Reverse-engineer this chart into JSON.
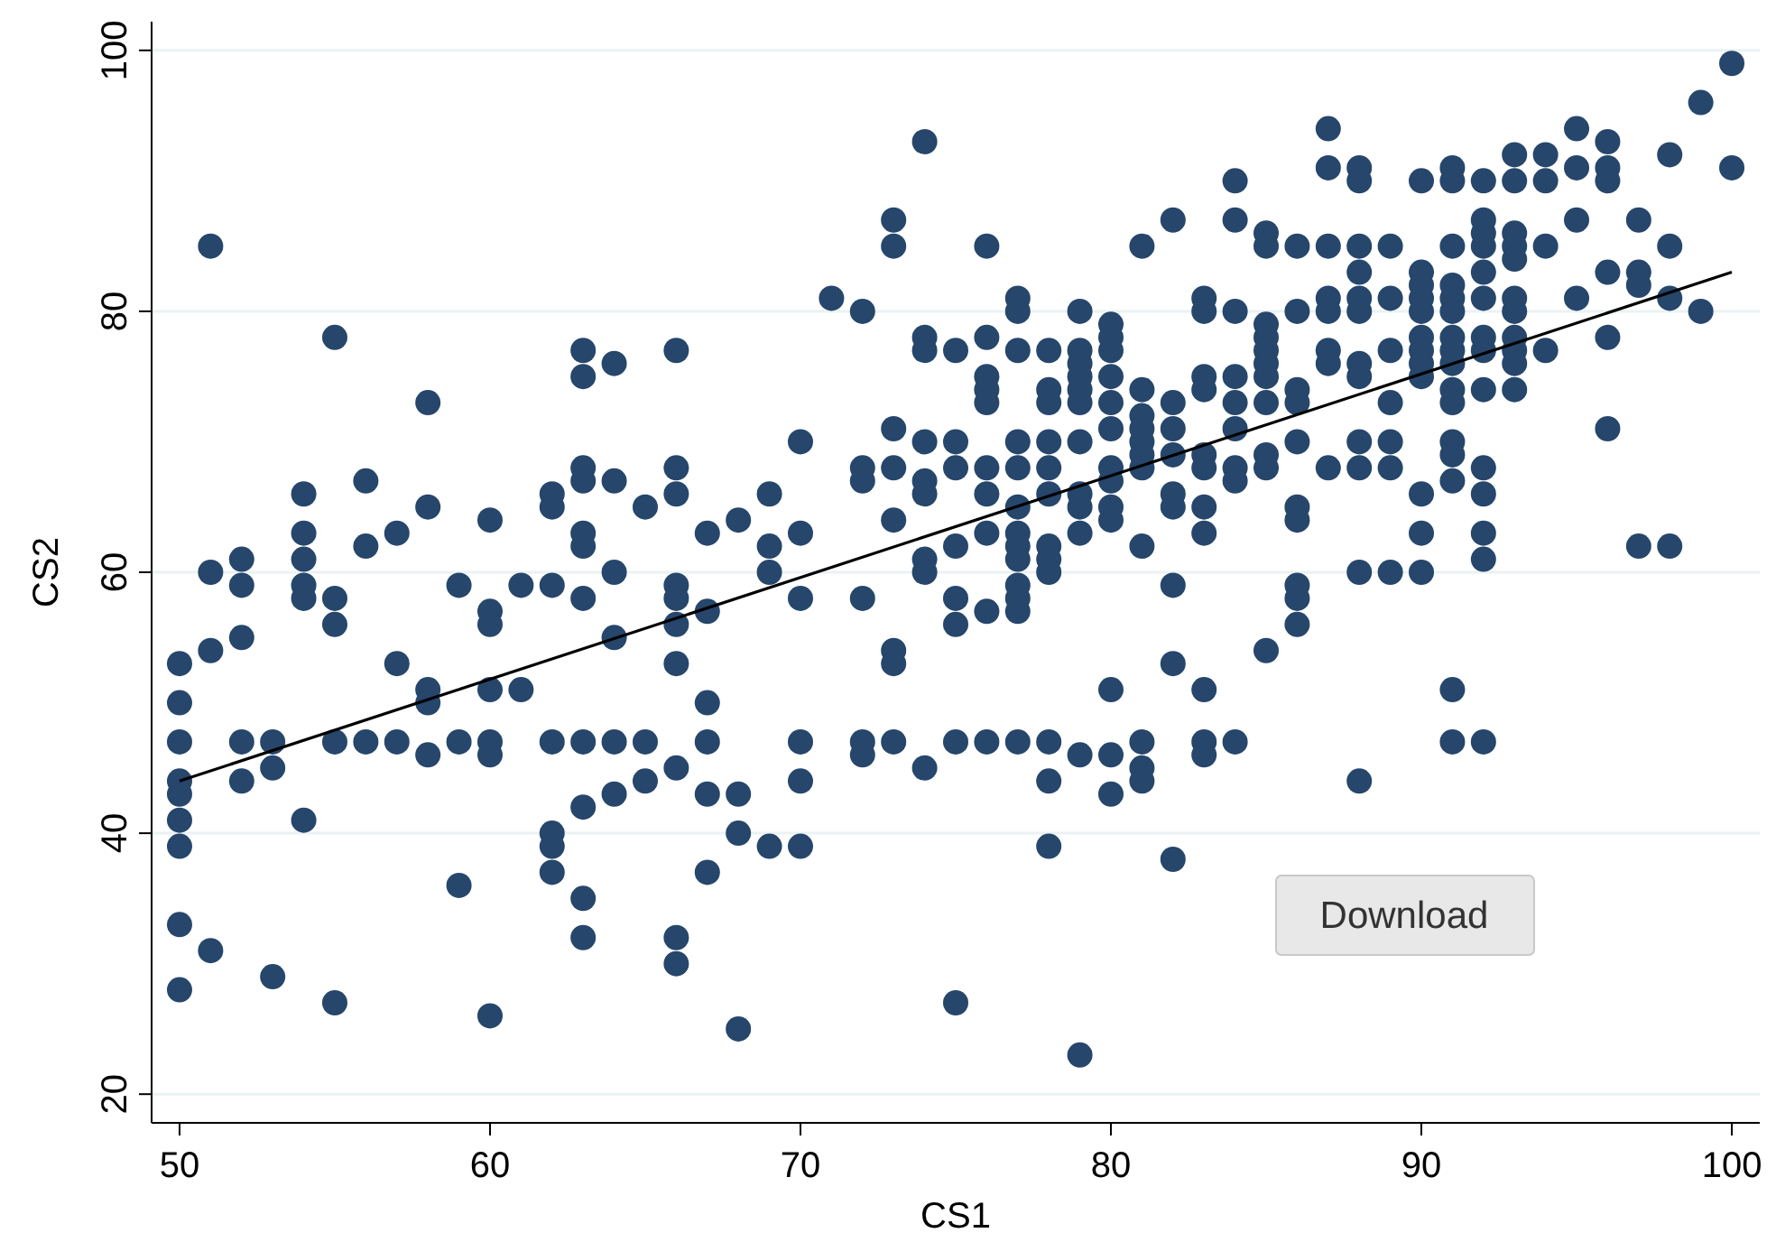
{
  "chart_data": {
    "type": "scatter",
    "xlabel": "CS1",
    "ylabel": "CS2",
    "xlim": [
      49.1,
      100.9
    ],
    "ylim": [
      17.8,
      102.2
    ],
    "xticks": [
      50,
      60,
      70,
      80,
      90,
      100
    ],
    "yticks": [
      20,
      40,
      60,
      80,
      100
    ],
    "grid": "y",
    "marker": "circle",
    "annotations": [
      "Download"
    ],
    "series": [
      {
        "color": "#26466b",
        "x": [
          50,
          50,
          50,
          50,
          50,
          50,
          50,
          50,
          50,
          51,
          51,
          51,
          51,
          52,
          52,
          52,
          52,
          52,
          53,
          53,
          53,
          54,
          54,
          54,
          54,
          54,
          54,
          55,
          55,
          55,
          55,
          55,
          56,
          56,
          56,
          57,
          57,
          57,
          58,
          58,
          58,
          58,
          58,
          59,
          59,
          59,
          60,
          60,
          60,
          60,
          60,
          60,
          60,
          61,
          61,
          62,
          62,
          62,
          62,
          62,
          62,
          62,
          63,
          63,
          63,
          63,
          63,
          63,
          63,
          63,
          63,
          63,
          63,
          64,
          64,
          64,
          64,
          64,
          64,
          65,
          65,
          65,
          66,
          66,
          66,
          66,
          66,
          66,
          66,
          66,
          66,
          66,
          67,
          67,
          67,
          67,
          67,
          67,
          68,
          68,
          68,
          68,
          69,
          69,
          69,
          69,
          70,
          70,
          70,
          70,
          70,
          70,
          71,
          72,
          72,
          72,
          72,
          72,
          72,
          73,
          73,
          73,
          73,
          73,
          73,
          73,
          73,
          74,
          74,
          74,
          74,
          74,
          74,
          74,
          74,
          74,
          75,
          75,
          75,
          75,
          75,
          75,
          75,
          75,
          76,
          76,
          76,
          76,
          76,
          76,
          76,
          76,
          76,
          76,
          77,
          77,
          77,
          77,
          77,
          77,
          77,
          77,
          77,
          77,
          77,
          77,
          77,
          78,
          78,
          78,
          78,
          78,
          78,
          78,
          78,
          78,
          78,
          78,
          78,
          79,
          79,
          79,
          79,
          79,
          79,
          79,
          79,
          79,
          79,
          79,
          79,
          80,
          80,
          80,
          80,
          80,
          80,
          80,
          80,
          80,
          80,
          80,
          80,
          80,
          81,
          81,
          81,
          81,
          81,
          81,
          81,
          81,
          81,
          81,
          81,
          82,
          82,
          82,
          82,
          82,
          82,
          82,
          82,
          82,
          83,
          83,
          83,
          83,
          83,
          83,
          83,
          83,
          83,
          83,
          83,
          84,
          84,
          84,
          84,
          84,
          84,
          84,
          84,
          84,
          85,
          85,
          85,
          85,
          85,
          85,
          85,
          85,
          85,
          85,
          85,
          86,
          86,
          86,
          86,
          86,
          86,
          86,
          86,
          86,
          86,
          87,
          87,
          87,
          87,
          87,
          87,
          87,
          87,
          88,
          88,
          88,
          88,
          88,
          88,
          88,
          88,
          88,
          88,
          88,
          88,
          89,
          89,
          89,
          89,
          89,
          89,
          89,
          90,
          90,
          90,
          90,
          90,
          90,
          90,
          90,
          90,
          90,
          90,
          90,
          91,
          91,
          91,
          91,
          91,
          91,
          91,
          91,
          91,
          91,
          91,
          91,
          91,
          91,
          91,
          91,
          92,
          92,
          92,
          92,
          92,
          92,
          92,
          92,
          92,
          92,
          92,
          92,
          92,
          92,
          93,
          93,
          93,
          93,
          93,
          93,
          93,
          93,
          93,
          93,
          93,
          94,
          94,
          94,
          94,
          95,
          95,
          95,
          95,
          96,
          96,
          96,
          96,
          96,
          96,
          97,
          97,
          97,
          97,
          98,
          98,
          98,
          98,
          99,
          99,
          100,
          100
        ],
        "values": [
          53,
          50,
          47,
          44,
          43,
          41,
          39,
          33,
          28,
          85,
          60,
          54,
          31,
          61,
          59,
          55,
          47,
          44,
          47,
          45,
          29,
          66,
          63,
          61,
          59,
          58,
          41,
          78,
          58,
          56,
          47,
          27,
          67,
          62,
          47,
          63,
          53,
          47,
          73,
          65,
          51,
          50,
          46,
          59,
          47,
          36,
          64,
          57,
          56,
          51,
          47,
          46,
          26,
          59,
          51,
          66,
          65,
          59,
          47,
          40,
          39,
          37,
          77,
          75,
          68,
          67,
          63,
          62,
          58,
          47,
          42,
          35,
          32,
          76,
          67,
          60,
          55,
          47,
          43,
          65,
          47,
          44,
          77,
          68,
          66,
          59,
          58,
          56,
          53,
          45,
          32,
          30,
          63,
          57,
          50,
          47,
          43,
          37,
          64,
          43,
          40,
          25,
          66,
          62,
          60,
          39,
          70,
          63,
          58,
          47,
          44,
          39,
          81,
          80,
          68,
          67,
          58,
          47,
          46,
          87,
          85,
          71,
          68,
          64,
          54,
          53,
          47,
          93,
          78,
          77,
          70,
          67,
          66,
          61,
          60,
          45,
          77,
          70,
          68,
          62,
          58,
          56,
          47,
          27,
          85,
          78,
          75,
          74,
          73,
          68,
          66,
          63,
          57,
          47,
          81,
          80,
          77,
          70,
          68,
          65,
          63,
          62,
          61,
          59,
          58,
          57,
          47,
          77,
          74,
          73,
          70,
          68,
          66,
          62,
          61,
          60,
          47,
          44,
          39,
          80,
          77,
          76,
          75,
          74,
          73,
          70,
          66,
          65,
          63,
          46,
          23,
          79,
          78,
          77,
          75,
          73,
          71,
          68,
          67,
          65,
          64,
          51,
          46,
          43,
          85,
          74,
          72,
          71,
          70,
          69,
          68,
          62,
          47,
          45,
          44,
          87,
          73,
          71,
          69,
          66,
          65,
          59,
          53,
          38,
          81,
          80,
          75,
          74,
          69,
          68,
          65,
          63,
          51,
          47,
          46,
          90,
          87,
          80,
          75,
          73,
          71,
          68,
          67,
          47,
          86,
          85,
          79,
          78,
          77,
          76,
          75,
          73,
          69,
          68,
          54,
          85,
          80,
          74,
          73,
          70,
          65,
          64,
          59,
          58,
          56,
          94,
          91,
          85,
          81,
          80,
          77,
          76,
          68,
          91,
          90,
          85,
          83,
          81,
          80,
          76,
          75,
          70,
          68,
          60,
          44,
          85,
          81,
          77,
          73,
          70,
          68,
          60,
          90,
          83,
          82,
          81,
          80,
          78,
          77,
          76,
          75,
          66,
          63,
          60,
          91,
          90,
          85,
          82,
          81,
          80,
          78,
          77,
          76,
          74,
          73,
          70,
          69,
          67,
          51,
          47,
          90,
          87,
          86,
          85,
          83,
          81,
          78,
          77,
          74,
          68,
          66,
          63,
          61,
          47,
          92,
          90,
          86,
          85,
          84,
          81,
          80,
          78,
          77,
          76,
          74,
          92,
          90,
          85,
          77,
          94,
          91,
          87,
          81,
          93,
          91,
          90,
          83,
          78,
          71,
          87,
          83,
          82,
          62,
          92,
          85,
          81,
          62,
          96,
          80,
          99,
          91
        ]
      },
      {
        "type": "line",
        "marker": "none",
        "color": "#000000",
        "x": [
          50,
          100
        ],
        "values": [
          44,
          83
        ]
      }
    ]
  }
}
